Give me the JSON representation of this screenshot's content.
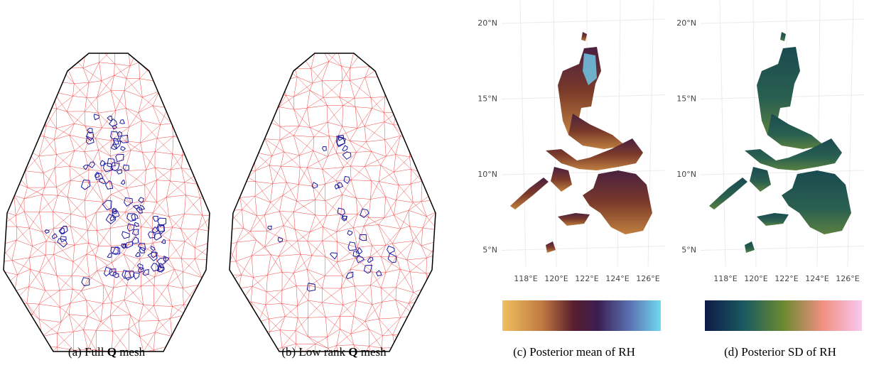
{
  "panels": [
    {
      "label": "(a)",
      "text_before": "Full",
      "symbol": "Q",
      "text_after": "mesh"
    },
    {
      "label": "(b)",
      "text_before": "Low rank",
      "symbol": "Q",
      "text_after": "mesh"
    },
    {
      "label": "(c)",
      "text": "Posterior mean of RH",
      "lat_ticks": [
        "20°N",
        "15°N",
        "10°N",
        "5°N"
      ],
      "lon_ticks": [
        "118°E",
        "120°E",
        "122°E",
        "124°E",
        "126°E"
      ]
    },
    {
      "label": "(d)",
      "text": "Posterior SD of RH",
      "lat_ticks": [
        "20°N",
        "15°N",
        "10°N",
        "5°N"
      ],
      "lon_ticks": [
        "118°E",
        "120°E",
        "122°E",
        "124°E",
        "126°E"
      ]
    }
  ]
}
